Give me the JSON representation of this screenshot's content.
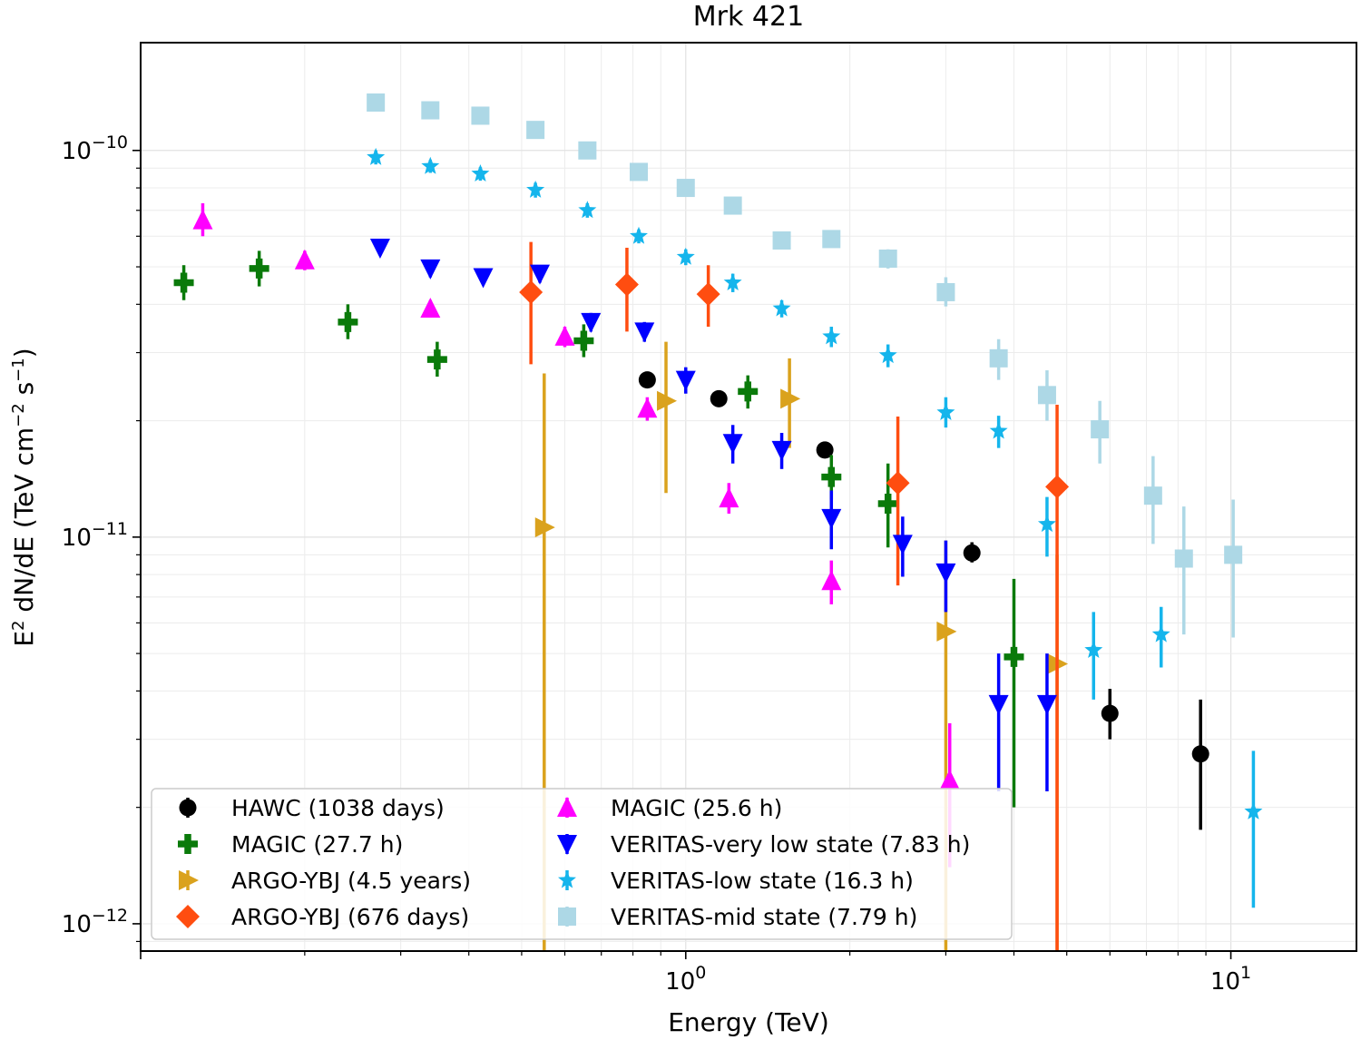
{
  "chart_data": {
    "type": "scatter",
    "title": "Mrk 421",
    "xlabel": "Energy (TeV)",
    "ylabel_parts": {
      "base": "E",
      "sup1": "2",
      "mid": " dN/dE (TeV cm",
      "sup2": "−2",
      "mid2": " s",
      "sup3": "−1",
      "end": ")"
    },
    "xscale": "log",
    "yscale": "log",
    "xlim": [
      0.1,
      17
    ],
    "ylim": [
      8.5e-13,
      1.9e-10
    ],
    "grid": true,
    "legend_location": "lower-left",
    "x_ticks": [
      {
        "value": 1,
        "base": "10",
        "exp": "0"
      },
      {
        "value": 10,
        "base": "10",
        "exp": "1"
      }
    ],
    "y_ticks": [
      {
        "value": 1e-10,
        "base": "10",
        "exp": "−10"
      },
      {
        "value": 1e-11,
        "base": "10",
        "exp": "−11"
      },
      {
        "value": 1e-12,
        "base": "10",
        "exp": "−12"
      }
    ],
    "series": [
      {
        "name": "HAWC (1038 days)",
        "marker": "circle",
        "color": "#000000",
        "points": [
          {
            "x": 0.85,
            "y": 2.55e-11,
            "ylo": 2.45e-11,
            "yhi": 2.65e-11
          },
          {
            "x": 1.15,
            "y": 2.28e-11,
            "ylo": 2.18e-11,
            "yhi": 2.38e-11
          },
          {
            "x": 1.8,
            "y": 1.68e-11,
            "ylo": 1.6e-11,
            "yhi": 1.76e-11
          },
          {
            "x": 3.35,
            "y": 9.1e-12,
            "ylo": 8.6e-12,
            "yhi": 9.7e-12
          },
          {
            "x": 6.0,
            "y": 3.5e-12,
            "ylo": 3e-12,
            "yhi": 4.05e-12
          },
          {
            "x": 8.8,
            "y": 2.75e-12,
            "ylo": 1.75e-12,
            "yhi": 3.8e-12
          }
        ]
      },
      {
        "name": "MAGIC (27.7 h)",
        "marker": "plus",
        "color": "#0a7a0a",
        "points": [
          {
            "x": 0.12,
            "y": 4.55e-11,
            "ylo": 4.1e-11,
            "yhi": 5.05e-11
          },
          {
            "x": 0.165,
            "y": 4.95e-11,
            "ylo": 4.45e-11,
            "yhi": 5.5e-11
          },
          {
            "x": 0.24,
            "y": 3.6e-11,
            "ylo": 3.25e-11,
            "yhi": 4e-11
          },
          {
            "x": 0.35,
            "y": 2.88e-11,
            "ylo": 2.6e-11,
            "yhi": 3.2e-11
          },
          {
            "x": 0.65,
            "y": 3.22e-11,
            "ylo": 2.92e-11,
            "yhi": 3.55e-11
          },
          {
            "x": 1.3,
            "y": 2.38e-11,
            "ylo": 2.15e-11,
            "yhi": 2.62e-11
          },
          {
            "x": 1.85,
            "y": 1.43e-11,
            "ylo": 1.25e-11,
            "yhi": 1.63e-11
          },
          {
            "x": 2.35,
            "y": 1.22e-11,
            "ylo": 9.4e-12,
            "yhi": 1.55e-11
          },
          {
            "x": 4.0,
            "y": 4.9e-12,
            "ylo": 2e-12,
            "yhi": 7.8e-12
          }
        ]
      },
      {
        "name": "ARGO-YBJ (4.5 years)",
        "marker": "triangle-right",
        "color": "#daa21d",
        "points": [
          {
            "x": 0.55,
            "y": 1.06e-11,
            "ylo": 8e-13,
            "yhi": 2.65e-11
          },
          {
            "x": 0.92,
            "y": 2.25e-11,
            "ylo": 1.3e-11,
            "yhi": 3.2e-11
          },
          {
            "x": 1.55,
            "y": 2.28e-11,
            "ylo": 1.7e-11,
            "yhi": 2.9e-11
          },
          {
            "x": 3.0,
            "y": 5.7e-12,
            "ylo": 8e-13,
            "yhi": 9.8e-12
          },
          {
            "x": 4.8,
            "y": 4.7e-12,
            "ylo": 8e-13,
            "yhi": 9e-12
          }
        ]
      },
      {
        "name": "ARGO-YBJ (676 days)",
        "marker": "diamond",
        "color": "#ff4d10",
        "points": [
          {
            "x": 0.52,
            "y": 4.3e-11,
            "ylo": 2.8e-11,
            "yhi": 5.8e-11
          },
          {
            "x": 0.78,
            "y": 4.5e-11,
            "ylo": 3.4e-11,
            "yhi": 5.6e-11
          },
          {
            "x": 1.1,
            "y": 4.25e-11,
            "ylo": 3.5e-11,
            "yhi": 5.05e-11
          },
          {
            "x": 2.45,
            "y": 1.38e-11,
            "ylo": 7.5e-12,
            "yhi": 2.05e-11
          },
          {
            "x": 4.8,
            "y": 1.35e-11,
            "ylo": 8e-13,
            "yhi": 2.2e-11
          }
        ]
      },
      {
        "name": "MAGIC (25.6 h)",
        "marker": "triangle-up",
        "color": "#ff00ff",
        "points": [
          {
            "x": 0.13,
            "y": 6.6e-11,
            "ylo": 6e-11,
            "yhi": 7.3e-11
          },
          {
            "x": 0.2,
            "y": 5.2e-11,
            "ylo": 4.9e-11,
            "yhi": 5.5e-11
          },
          {
            "x": 0.34,
            "y": 3.9e-11,
            "ylo": 3.7e-11,
            "yhi": 4.1e-11
          },
          {
            "x": 0.6,
            "y": 3.3e-11,
            "ylo": 3.1e-11,
            "yhi": 3.5e-11
          },
          {
            "x": 0.85,
            "y": 2.15e-11,
            "ylo": 2e-11,
            "yhi": 2.3e-11
          },
          {
            "x": 1.2,
            "y": 1.26e-11,
            "ylo": 1.15e-11,
            "yhi": 1.38e-11
          },
          {
            "x": 1.85,
            "y": 7.7e-12,
            "ylo": 6.7e-12,
            "yhi": 8.7e-12
          },
          {
            "x": 3.05,
            "y": 2.35e-12,
            "ylo": 1.4e-12,
            "yhi": 3.3e-12
          }
        ]
      },
      {
        "name": "VERITAS-very low state (7.83 h)",
        "marker": "triangle-down",
        "color": "#0000ff",
        "points": [
          {
            "x": 0.275,
            "y": 5.6e-11,
            "ylo": 5.35e-11,
            "yhi": 5.85e-11
          },
          {
            "x": 0.34,
            "y": 4.95e-11,
            "ylo": 4.7e-11,
            "yhi": 5.2e-11
          },
          {
            "x": 0.425,
            "y": 4.7e-11,
            "ylo": 4.5e-11,
            "yhi": 4.9e-11
          },
          {
            "x": 0.54,
            "y": 4.8e-11,
            "ylo": 4.55e-11,
            "yhi": 5.05e-11
          },
          {
            "x": 0.67,
            "y": 3.6e-11,
            "ylo": 3.4e-11,
            "yhi": 3.8e-11
          },
          {
            "x": 0.84,
            "y": 3.4e-11,
            "ylo": 3.2e-11,
            "yhi": 3.6e-11
          },
          {
            "x": 1.0,
            "y": 2.55e-11,
            "ylo": 2.35e-11,
            "yhi": 2.75e-11
          },
          {
            "x": 1.22,
            "y": 1.75e-11,
            "ylo": 1.55e-11,
            "yhi": 1.95e-11
          },
          {
            "x": 1.5,
            "y": 1.68e-11,
            "ylo": 1.5e-11,
            "yhi": 1.86e-11
          },
          {
            "x": 1.85,
            "y": 1.12e-11,
            "ylo": 9.3e-12,
            "yhi": 1.32e-11
          },
          {
            "x": 2.5,
            "y": 9.6e-12,
            "ylo": 7.9e-12,
            "yhi": 1.13e-11
          },
          {
            "x": 3.0,
            "y": 8.1e-12,
            "ylo": 6.4e-12,
            "yhi": 9.8e-12
          },
          {
            "x": 3.75,
            "y": 3.7e-12,
            "ylo": 2.2e-12,
            "yhi": 5e-12
          },
          {
            "x": 4.6,
            "y": 3.7e-12,
            "ylo": 2.2e-12,
            "yhi": 5e-12
          }
        ]
      },
      {
        "name": "VERITAS-low state (16.3 h)",
        "marker": "star",
        "color": "#15b5ec",
        "points": [
          {
            "x": 0.27,
            "y": 9.6e-11,
            "ylo": 9.2e-11,
            "yhi": 1e-10
          },
          {
            "x": 0.34,
            "y": 9.1e-11,
            "ylo": 8.75e-11,
            "yhi": 9.45e-11
          },
          {
            "x": 0.42,
            "y": 8.7e-11,
            "ylo": 8.35e-11,
            "yhi": 9.05e-11
          },
          {
            "x": 0.53,
            "y": 7.9e-11,
            "ylo": 7.55e-11,
            "yhi": 8.25e-11
          },
          {
            "x": 0.66,
            "y": 7e-11,
            "ylo": 6.7e-11,
            "yhi": 7.3e-11
          },
          {
            "x": 0.82,
            "y": 6e-11,
            "ylo": 5.75e-11,
            "yhi": 6.25e-11
          },
          {
            "x": 1.0,
            "y": 5.3e-11,
            "ylo": 5.05e-11,
            "yhi": 5.55e-11
          },
          {
            "x": 1.22,
            "y": 4.55e-11,
            "ylo": 4.3e-11,
            "yhi": 4.8e-11
          },
          {
            "x": 1.5,
            "y": 3.9e-11,
            "ylo": 3.7e-11,
            "yhi": 4.1e-11
          },
          {
            "x": 1.85,
            "y": 3.3e-11,
            "ylo": 3.1e-11,
            "yhi": 3.5e-11
          },
          {
            "x": 2.35,
            "y": 2.95e-11,
            "ylo": 2.75e-11,
            "yhi": 3.15e-11
          },
          {
            "x": 3.0,
            "y": 2.1e-11,
            "ylo": 1.92e-11,
            "yhi": 2.3e-11
          },
          {
            "x": 3.75,
            "y": 1.88e-11,
            "ylo": 1.7e-11,
            "yhi": 2.06e-11
          },
          {
            "x": 4.6,
            "y": 1.08e-11,
            "ylo": 8.9e-12,
            "yhi": 1.27e-11
          },
          {
            "x": 5.6,
            "y": 5.1e-12,
            "ylo": 3.8e-12,
            "yhi": 6.4e-12
          },
          {
            "x": 7.45,
            "y": 5.6e-12,
            "ylo": 4.6e-12,
            "yhi": 6.6e-12
          },
          {
            "x": 11.0,
            "y": 1.95e-12,
            "ylo": 1.1e-12,
            "yhi": 2.8e-12
          }
        ]
      },
      {
        "name": "VERITAS-mid state (7.79 h)",
        "marker": "square",
        "color": "#add8e6",
        "points": [
          {
            "x": 0.27,
            "y": 1.33e-10,
            "ylo": 1.29e-10,
            "yhi": 1.37e-10
          },
          {
            "x": 0.34,
            "y": 1.27e-10,
            "ylo": 1.23e-10,
            "yhi": 1.31e-10
          },
          {
            "x": 0.42,
            "y": 1.23e-10,
            "ylo": 1.19e-10,
            "yhi": 1.27e-10
          },
          {
            "x": 0.53,
            "y": 1.13e-10,
            "ylo": 1.09e-10,
            "yhi": 1.17e-10
          },
          {
            "x": 0.66,
            "y": 1e-10,
            "ylo": 9.7e-11,
            "yhi": 1.03e-10
          },
          {
            "x": 0.82,
            "y": 8.8e-11,
            "ylo": 8.55e-11,
            "yhi": 9.05e-11
          },
          {
            "x": 1.0,
            "y": 8e-11,
            "ylo": 7.75e-11,
            "yhi": 8.25e-11
          },
          {
            "x": 1.22,
            "y": 7.2e-11,
            "ylo": 6.95e-11,
            "yhi": 7.45e-11
          },
          {
            "x": 1.5,
            "y": 5.85e-11,
            "ylo": 5.65e-11,
            "yhi": 6.05e-11
          },
          {
            "x": 1.85,
            "y": 5.9e-11,
            "ylo": 5.65e-11,
            "yhi": 6.15e-11
          },
          {
            "x": 2.35,
            "y": 5.25e-11,
            "ylo": 4.95e-11,
            "yhi": 5.55e-11
          },
          {
            "x": 3.0,
            "y": 4.3e-11,
            "ylo": 3.95e-11,
            "yhi": 4.7e-11
          },
          {
            "x": 3.75,
            "y": 2.9e-11,
            "ylo": 2.55e-11,
            "yhi": 3.25e-11
          },
          {
            "x": 4.6,
            "y": 2.33e-11,
            "ylo": 2e-11,
            "yhi": 2.7e-11
          },
          {
            "x": 5.75,
            "y": 1.9e-11,
            "ylo": 1.55e-11,
            "yhi": 2.25e-11
          },
          {
            "x": 7.2,
            "y": 1.28e-11,
            "ylo": 9.6e-12,
            "yhi": 1.62e-11
          },
          {
            "x": 8.2,
            "y": 8.8e-12,
            "ylo": 5.6e-12,
            "yhi": 1.2e-11
          },
          {
            "x": 10.1,
            "y": 9e-12,
            "ylo": 5.5e-12,
            "yhi": 1.25e-11
          }
        ]
      }
    ]
  }
}
